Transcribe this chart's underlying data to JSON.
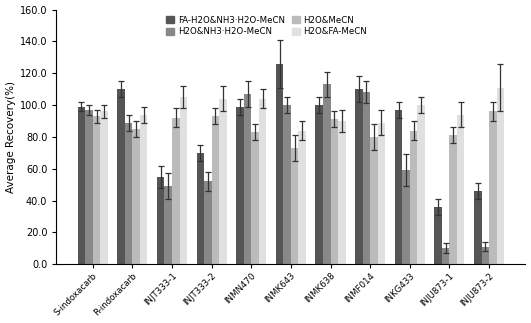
{
  "categories": [
    "S-indoxacarb",
    "R-indoxacarb",
    "INJT333-1",
    "INJT333-2",
    "INMN470",
    "INMK643",
    "INMK638",
    "INMF014",
    "INKG433",
    "INJU873-1",
    "INJU873-2"
  ],
  "series": [
    {
      "label": "FA-H2O&NH3·H2O-MeCN",
      "color": "#555555",
      "values": [
        99,
        110,
        55,
        70,
        99,
        126,
        100,
        110,
        97,
        36,
        46
      ],
      "errors": [
        3,
        5,
        7,
        5,
        5,
        15,
        5,
        8,
        5,
        5,
        5
      ]
    },
    {
      "label": "H2O&NH3·H2O-MeCN",
      "color": "#888888",
      "values": [
        97,
        89,
        49,
        52,
        107,
        100,
        113,
        108,
        59,
        10,
        11
      ],
      "errors": [
        3,
        5,
        8,
        6,
        8,
        5,
        8,
        7,
        10,
        3,
        3
      ]
    },
    {
      "label": "H2O&MeCN",
      "color": "#bbbbbb",
      "values": [
        93,
        85,
        92,
        93,
        83,
        73,
        91,
        80,
        84,
        81,
        96
      ],
      "errors": [
        4,
        5,
        6,
        5,
        5,
        8,
        5,
        8,
        6,
        5,
        6
      ]
    },
    {
      "label": "H2O&FA-MeCN",
      "color": "#e0e0e0",
      "values": [
        96,
        94,
        105,
        104,
        104,
        84,
        90,
        89,
        100,
        94,
        111
      ],
      "errors": [
        4,
        5,
        7,
        8,
        6,
        6,
        7,
        8,
        5,
        8,
        15
      ]
    }
  ],
  "ylabel": "Average Recovery(%)",
  "ylim": [
    0,
    160
  ],
  "yticks": [
    0.0,
    20.0,
    40.0,
    60.0,
    80.0,
    100.0,
    120.0,
    140.0,
    160.0
  ],
  "legend_ncol": 2,
  "bar_width": 0.19,
  "figsize": [
    5.31,
    3.23
  ],
  "dpi": 100
}
